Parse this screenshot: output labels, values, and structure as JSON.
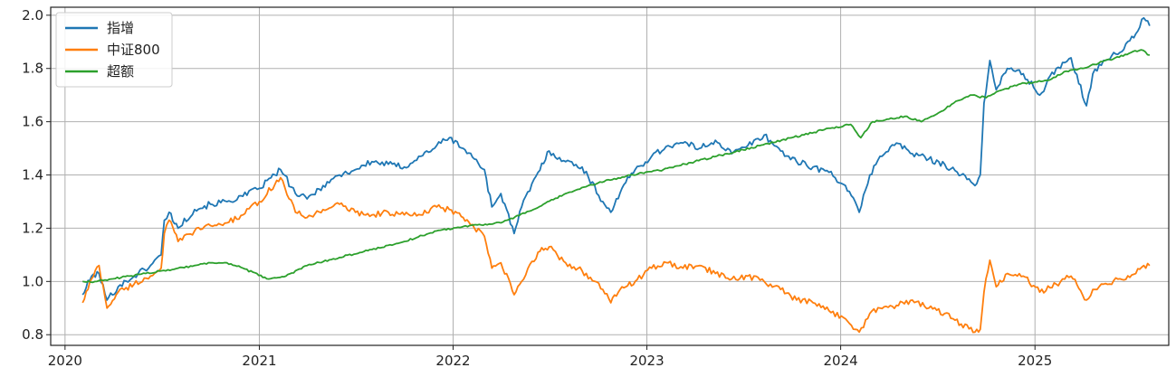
{
  "chart_data": {
    "type": "line",
    "title": "",
    "xlabel": "",
    "ylabel": "",
    "xlim": [
      "2019-12-05",
      "2025-09-10"
    ],
    "ylim": [
      0.76,
      2.03
    ],
    "x_ticks": [
      {
        "date": "2020-01-01",
        "label": "2020"
      },
      {
        "date": "2021-01-01",
        "label": "2021"
      },
      {
        "date": "2022-01-01",
        "label": "2022"
      },
      {
        "date": "2023-01-01",
        "label": "2023"
      },
      {
        "date": "2024-01-01",
        "label": "2024"
      },
      {
        "date": "2025-01-01",
        "label": "2025"
      }
    ],
    "y_ticks": [
      {
        "value": 0.8,
        "label": "0.8"
      },
      {
        "value": 1.0,
        "label": "1.0"
      },
      {
        "value": 1.2,
        "label": "1.2"
      },
      {
        "value": 1.4,
        "label": "1.4"
      },
      {
        "value": 1.6,
        "label": "1.6"
      },
      {
        "value": 1.8,
        "label": "1.8"
      },
      {
        "value": 2.0,
        "label": "2.0"
      }
    ],
    "grid": true,
    "legend_position": "top-left",
    "series": [
      {
        "name": "指增",
        "color": "#1f77b4",
        "points": [
          [
            "2020-02-03",
            0.95
          ],
          [
            "2020-02-20",
            1.02
          ],
          [
            "2020-03-05",
            1.03
          ],
          [
            "2020-03-20",
            0.93
          ],
          [
            "2020-04-10",
            0.98
          ],
          [
            "2020-05-10",
            1.02
          ],
          [
            "2020-06-10",
            1.06
          ],
          [
            "2020-06-30",
            1.1
          ],
          [
            "2020-07-06",
            1.23
          ],
          [
            "2020-07-15",
            1.26
          ],
          [
            "2020-08-01",
            1.2
          ],
          [
            "2020-09-01",
            1.27
          ],
          [
            "2020-10-01",
            1.29
          ],
          [
            "2020-11-01",
            1.3
          ],
          [
            "2020-12-01",
            1.32
          ],
          [
            "2021-01-01",
            1.35
          ],
          [
            "2021-02-10",
            1.42
          ],
          [
            "2021-03-10",
            1.33
          ],
          [
            "2021-04-01",
            1.31
          ],
          [
            "2021-05-01",
            1.36
          ],
          [
            "2021-06-01",
            1.4
          ],
          [
            "2021-07-01",
            1.42
          ],
          [
            "2021-08-01",
            1.45
          ],
          [
            "2021-09-01",
            1.44
          ],
          [
            "2021-10-01",
            1.43
          ],
          [
            "2021-11-01",
            1.47
          ],
          [
            "2021-12-01",
            1.51
          ],
          [
            "2021-12-25",
            1.54
          ],
          [
            "2022-01-20",
            1.5
          ],
          [
            "2022-02-10",
            1.46
          ],
          [
            "2022-03-01",
            1.42
          ],
          [
            "2022-03-15",
            1.28
          ],
          [
            "2022-04-01",
            1.33
          ],
          [
            "2022-04-26",
            1.18
          ],
          [
            "2022-05-10",
            1.28
          ],
          [
            "2022-06-10",
            1.41
          ],
          [
            "2022-07-01",
            1.49
          ],
          [
            "2022-08-01",
            1.45
          ],
          [
            "2022-09-01",
            1.43
          ],
          [
            "2022-10-10",
            1.3
          ],
          [
            "2022-10-25",
            1.26
          ],
          [
            "2022-11-15",
            1.35
          ],
          [
            "2022-12-10",
            1.42
          ],
          [
            "2023-01-10",
            1.47
          ],
          [
            "2023-02-10",
            1.51
          ],
          [
            "2023-03-10",
            1.52
          ],
          [
            "2023-04-10",
            1.5
          ],
          [
            "2023-05-10",
            1.53
          ],
          [
            "2023-06-10",
            1.48
          ],
          [
            "2023-07-10",
            1.51
          ],
          [
            "2023-08-10",
            1.55
          ],
          [
            "2023-09-10",
            1.49
          ],
          [
            "2023-10-10",
            1.45
          ],
          [
            "2023-11-10",
            1.43
          ],
          [
            "2023-12-10",
            1.41
          ],
          [
            "2024-01-10",
            1.36
          ],
          [
            "2024-02-05",
            1.26
          ],
          [
            "2024-02-25",
            1.4
          ],
          [
            "2024-03-15",
            1.47
          ],
          [
            "2024-04-15",
            1.52
          ],
          [
            "2024-05-15",
            1.48
          ],
          [
            "2024-06-15",
            1.46
          ],
          [
            "2024-07-15",
            1.44
          ],
          [
            "2024-08-15",
            1.4
          ],
          [
            "2024-09-10",
            1.36
          ],
          [
            "2024-09-20",
            1.4
          ],
          [
            "2024-09-27",
            1.67
          ],
          [
            "2024-10-08",
            1.83
          ],
          [
            "2024-10-20",
            1.72
          ],
          [
            "2024-11-10",
            1.8
          ],
          [
            "2024-12-10",
            1.78
          ],
          [
            "2025-01-10",
            1.7
          ],
          [
            "2025-02-10",
            1.8
          ],
          [
            "2025-03-10",
            1.84
          ],
          [
            "2025-04-08",
            1.66
          ],
          [
            "2025-04-20",
            1.78
          ],
          [
            "2025-05-10",
            1.83
          ],
          [
            "2025-06-10",
            1.86
          ],
          [
            "2025-07-10",
            1.93
          ],
          [
            "2025-07-25",
            1.99
          ],
          [
            "2025-08-05",
            1.96
          ]
        ]
      },
      {
        "name": "中证800",
        "color": "#ff7f0e",
        "points": [
          [
            "2020-02-03",
            0.92
          ],
          [
            "2020-02-20",
            1.01
          ],
          [
            "2020-03-05",
            1.06
          ],
          [
            "2020-03-20",
            0.9
          ],
          [
            "2020-04-10",
            0.96
          ],
          [
            "2020-05-10",
            0.99
          ],
          [
            "2020-06-10",
            1.02
          ],
          [
            "2020-06-30",
            1.05
          ],
          [
            "2020-07-06",
            1.18
          ],
          [
            "2020-07-15",
            1.23
          ],
          [
            "2020-08-01",
            1.15
          ],
          [
            "2020-09-01",
            1.19
          ],
          [
            "2020-10-01",
            1.21
          ],
          [
            "2020-11-01",
            1.22
          ],
          [
            "2020-12-01",
            1.25
          ],
          [
            "2021-01-01",
            1.3
          ],
          [
            "2021-02-10",
            1.39
          ],
          [
            "2021-03-10",
            1.26
          ],
          [
            "2021-04-01",
            1.24
          ],
          [
            "2021-05-01",
            1.27
          ],
          [
            "2021-06-01",
            1.29
          ],
          [
            "2021-07-01",
            1.26
          ],
          [
            "2021-08-01",
            1.25
          ],
          [
            "2021-09-01",
            1.26
          ],
          [
            "2021-10-01",
            1.25
          ],
          [
            "2021-11-01",
            1.25
          ],
          [
            "2021-12-01",
            1.28
          ],
          [
            "2021-12-25",
            1.27
          ],
          [
            "2022-01-20",
            1.24
          ],
          [
            "2022-02-10",
            1.2
          ],
          [
            "2022-03-01",
            1.17
          ],
          [
            "2022-03-15",
            1.05
          ],
          [
            "2022-04-01",
            1.07
          ],
          [
            "2022-04-26",
            0.95
          ],
          [
            "2022-05-10",
            1.0
          ],
          [
            "2022-06-10",
            1.11
          ],
          [
            "2022-07-01",
            1.13
          ],
          [
            "2022-08-01",
            1.07
          ],
          [
            "2022-09-01",
            1.04
          ],
          [
            "2022-10-10",
            0.97
          ],
          [
            "2022-10-25",
            0.92
          ],
          [
            "2022-11-15",
            0.98
          ],
          [
            "2022-12-10",
            1.0
          ],
          [
            "2023-01-10",
            1.05
          ],
          [
            "2023-02-10",
            1.07
          ],
          [
            "2023-03-10",
            1.05
          ],
          [
            "2023-04-10",
            1.06
          ],
          [
            "2023-05-10",
            1.03
          ],
          [
            "2023-06-10",
            1.01
          ],
          [
            "2023-07-10",
            1.02
          ],
          [
            "2023-08-10",
            1.0
          ],
          [
            "2023-09-10",
            0.97
          ],
          [
            "2023-10-10",
            0.93
          ],
          [
            "2023-11-10",
            0.92
          ],
          [
            "2023-12-10",
            0.89
          ],
          [
            "2024-01-10",
            0.86
          ],
          [
            "2024-02-05",
            0.81
          ],
          [
            "2024-02-25",
            0.88
          ],
          [
            "2024-03-15",
            0.9
          ],
          [
            "2024-04-15",
            0.91
          ],
          [
            "2024-05-15",
            0.93
          ],
          [
            "2024-06-15",
            0.9
          ],
          [
            "2024-07-15",
            0.88
          ],
          [
            "2024-08-15",
            0.84
          ],
          [
            "2024-09-10",
            0.81
          ],
          [
            "2024-09-20",
            0.82
          ],
          [
            "2024-09-27",
            0.96
          ],
          [
            "2024-10-08",
            1.08
          ],
          [
            "2024-10-20",
            0.98
          ],
          [
            "2024-11-10",
            1.03
          ],
          [
            "2024-12-10",
            1.02
          ],
          [
            "2025-01-10",
            0.96
          ],
          [
            "2025-02-10",
            0.99
          ],
          [
            "2025-03-10",
            1.02
          ],
          [
            "2025-04-08",
            0.93
          ],
          [
            "2025-04-20",
            0.97
          ],
          [
            "2025-05-10",
            0.99
          ],
          [
            "2025-06-10",
            1.01
          ],
          [
            "2025-07-10",
            1.03
          ],
          [
            "2025-07-25",
            1.06
          ],
          [
            "2025-08-05",
            1.06
          ]
        ]
      },
      {
        "name": "超额",
        "color": "#2ca02c",
        "points": [
          [
            "2020-02-03",
            1.0
          ],
          [
            "2020-03-01",
            1.0
          ],
          [
            "2020-04-01",
            1.01
          ],
          [
            "2020-05-01",
            1.02
          ],
          [
            "2020-06-01",
            1.03
          ],
          [
            "2020-07-01",
            1.04
          ],
          [
            "2020-08-01",
            1.05
          ],
          [
            "2020-09-01",
            1.06
          ],
          [
            "2020-10-01",
            1.07
          ],
          [
            "2020-11-01",
            1.07
          ],
          [
            "2020-12-01",
            1.05
          ],
          [
            "2021-01-15",
            1.01
          ],
          [
            "2021-02-20",
            1.02
          ],
          [
            "2021-04-01",
            1.06
          ],
          [
            "2021-06-01",
            1.09
          ],
          [
            "2021-08-01",
            1.12
          ],
          [
            "2021-10-01",
            1.15
          ],
          [
            "2021-12-01",
            1.19
          ],
          [
            "2022-02-01",
            1.21
          ],
          [
            "2022-04-01",
            1.22
          ],
          [
            "2022-06-01",
            1.27
          ],
          [
            "2022-08-01",
            1.33
          ],
          [
            "2022-10-01",
            1.37
          ],
          [
            "2022-12-01",
            1.4
          ],
          [
            "2023-02-01",
            1.42
          ],
          [
            "2023-04-01",
            1.45
          ],
          [
            "2023-06-01",
            1.48
          ],
          [
            "2023-08-01",
            1.51
          ],
          [
            "2023-10-01",
            1.54
          ],
          [
            "2023-12-01",
            1.57
          ],
          [
            "2024-01-20",
            1.59
          ],
          [
            "2024-02-08",
            1.54
          ],
          [
            "2024-03-01",
            1.6
          ],
          [
            "2024-04-01",
            1.61
          ],
          [
            "2024-05-01",
            1.62
          ],
          [
            "2024-06-01",
            1.6
          ],
          [
            "2024-07-01",
            1.63
          ],
          [
            "2024-08-01",
            1.67
          ],
          [
            "2024-09-01",
            1.7
          ],
          [
            "2024-10-01",
            1.69
          ],
          [
            "2024-11-01",
            1.72
          ],
          [
            "2024-12-01",
            1.74
          ],
          [
            "2025-01-01",
            1.75
          ],
          [
            "2025-02-01",
            1.76
          ],
          [
            "2025-03-01",
            1.79
          ],
          [
            "2025-04-01",
            1.8
          ],
          [
            "2025-05-01",
            1.82
          ],
          [
            "2025-06-01",
            1.84
          ],
          [
            "2025-07-01",
            1.86
          ],
          [
            "2025-07-20",
            1.87
          ],
          [
            "2025-08-05",
            1.85
          ]
        ]
      }
    ]
  }
}
